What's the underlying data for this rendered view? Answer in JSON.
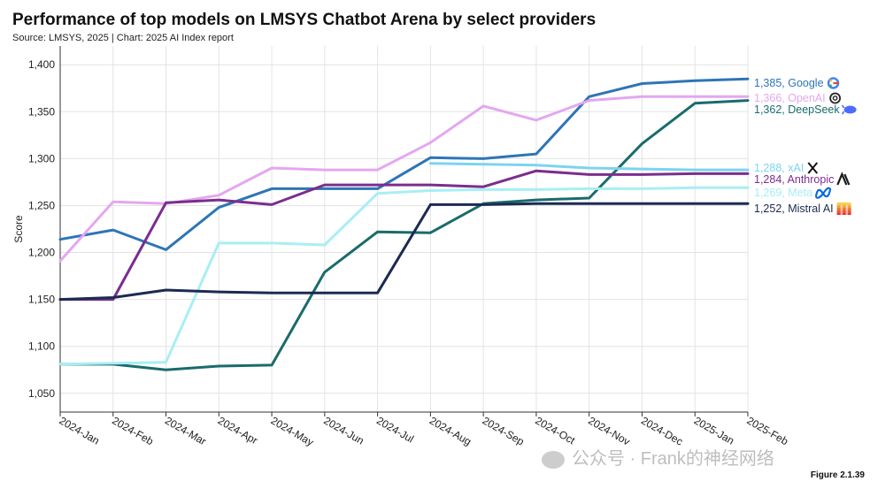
{
  "title": "Performance of top models on LMSYS Chatbot Arena by select providers",
  "subtitle": "Source: LMSYS, 2025 | Chart: 2025 AI Index report",
  "figure_label": "Figure 2.1.39",
  "watermark": "公众号 · Frank的神经网络",
  "chart_data": {
    "type": "line",
    "title": "Performance of top models on LMSYS Chatbot Arena by select providers",
    "xlabel": "",
    "ylabel": "Score",
    "ylim": [
      1030,
      1420
    ],
    "yticks": [
      1050,
      1100,
      1150,
      1200,
      1250,
      1300,
      1350,
      1400
    ],
    "ytick_labels": [
      "1,050",
      "1,100",
      "1,150",
      "1,200",
      "1,250",
      "1,300",
      "1,350",
      "1,400"
    ],
    "grid": true,
    "categories": [
      "2024-Jan",
      "2024-Feb",
      "2024-Mar",
      "2024-Apr",
      "2024-May",
      "2024-Jun",
      "2024-Jul",
      "2024-Aug",
      "2024-Sep",
      "2024-Oct",
      "2024-Nov",
      "2024-Dec",
      "2025-Jan",
      "2025-Feb"
    ],
    "series": [
      {
        "name": "Google",
        "label": "1,385, Google",
        "icon": "google-icon",
        "color": "#2e75b6",
        "values": [
          1214,
          1224,
          1203,
          1248,
          1268,
          1268,
          1268,
          1301,
          1300,
          1305,
          1366,
          1380,
          1383,
          1385
        ]
      },
      {
        "name": "OpenAI",
        "label": "1,366, OpenAI",
        "icon": "openai-icon",
        "color": "#e4a7f0",
        "values": [
          1191,
          1254,
          1252,
          1261,
          1290,
          1288,
          1288,
          1317,
          1356,
          1341,
          1362,
          1366,
          1366,
          1366
        ]
      },
      {
        "name": "DeepSeek",
        "label": "1,362, DeepSeek",
        "icon": "deepseek-icon",
        "color": "#1a6b6b",
        "values": [
          1081,
          1081,
          1075,
          1079,
          1080,
          1179,
          1222,
          1221,
          1252,
          1256,
          1258,
          1316,
          1359,
          1362
        ]
      },
      {
        "name": "xAI",
        "label": "1,288, xAI",
        "icon": "xai-icon",
        "color": "#7dd3f0",
        "values": [
          null,
          null,
          null,
          null,
          null,
          null,
          null,
          1295,
          1294,
          1293,
          1290,
          1289,
          1288,
          1288
        ]
      },
      {
        "name": "Anthropic",
        "label": "1,284, Anthropic",
        "icon": "anthropic-icon",
        "color": "#7b2d8e",
        "values": [
          1150,
          1150,
          1253,
          1256,
          1251,
          1272,
          1272,
          1272,
          1270,
          1287,
          1283,
          1283,
          1284,
          1284
        ]
      },
      {
        "name": "Meta",
        "label": "1,269, Meta",
        "icon": "meta-icon",
        "color": "#a8eef5",
        "values": [
          1081,
          1082,
          1083,
          1210,
          1210,
          1208,
          1263,
          1266,
          1267,
          1267,
          1268,
          1268,
          1269,
          1269
        ]
      },
      {
        "name": "Mistral AI",
        "label": "1,252, Mistral AI",
        "icon": "mistral-icon",
        "color": "#1c2a52",
        "values": [
          1150,
          1152,
          1160,
          1158,
          1157,
          1157,
          1157,
          1251,
          1251,
          1252,
          1252,
          1252,
          1252,
          1252
        ]
      }
    ]
  }
}
